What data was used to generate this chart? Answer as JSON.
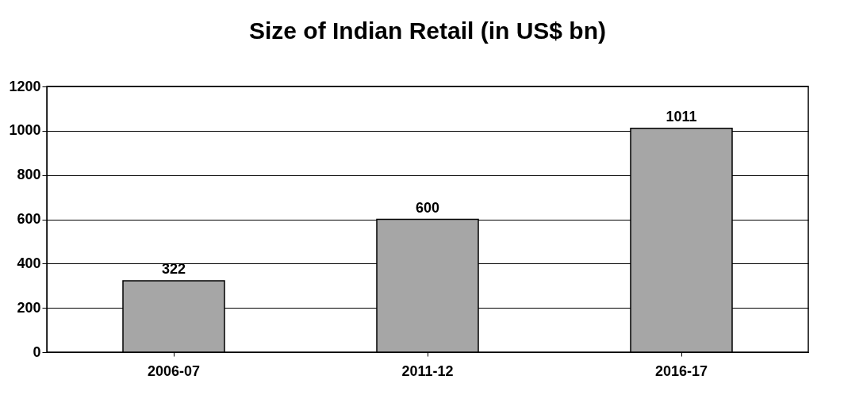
{
  "chart_data": {
    "type": "bar",
    "title": "Size of Indian Retail (in US$ bn)",
    "categories": [
      "2006-07",
      "2011-12",
      "2016-17"
    ],
    "values": [
      322,
      600,
      1011
    ],
    "color": "#a6a6a6",
    "ylim": [
      0,
      1200
    ],
    "yticks": [
      0,
      200,
      400,
      600,
      800,
      1000,
      1200
    ],
    "grid": "y",
    "data_labels": true
  }
}
